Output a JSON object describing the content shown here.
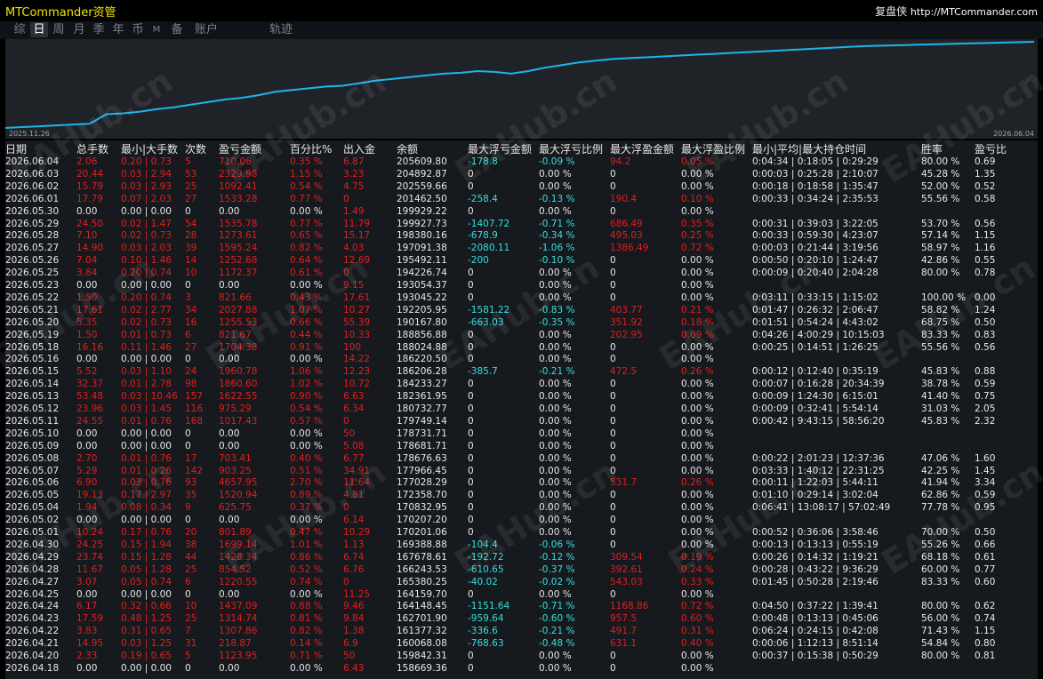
{
  "app": {
    "title": "MTCommander资管",
    "right_label": "复盘侠",
    "url": "http://MTCommander.com"
  },
  "tabs": [
    "综",
    "日",
    "周",
    "月",
    "季",
    "年",
    "币",
    "M",
    "备",
    "账户",
    "轨迹"
  ],
  "active_tab": "日",
  "chart": {
    "start_label": "2025.11.26",
    "end_label": "2026.06.04",
    "line_color": "#1eb4ea",
    "bg_color": "#1f2328"
  },
  "chart_data": {
    "type": "line",
    "x_start": "2025.11.26",
    "x_end": "2026.06.04",
    "series": [
      {
        "values": [
          0.0,
          0.01,
          0.02,
          0.03,
          0.04,
          0.05,
          0.16,
          0.17,
          0.19,
          0.22,
          0.24,
          0.27,
          0.3,
          0.33,
          0.35,
          0.38,
          0.42,
          0.44,
          0.46,
          0.48,
          0.49,
          0.52,
          0.55,
          0.57,
          0.59,
          0.61,
          0.63,
          0.64,
          0.66,
          0.65,
          0.63,
          0.66,
          0.7,
          0.73,
          0.76,
          0.78,
          0.8,
          0.81,
          0.82,
          0.83,
          0.84,
          0.85,
          0.86,
          0.87,
          0.88,
          0.89,
          0.9,
          0.91,
          0.92,
          0.93,
          0.94,
          0.95,
          0.955,
          0.96,
          0.965,
          0.97,
          0.975,
          0.98,
          0.985,
          0.99,
          0.995,
          1.0
        ]
      }
    ]
  },
  "columns": [
    "日期",
    "总手数",
    "最小|大手数",
    "次数",
    "盈亏金额",
    "百分比%",
    "出入金",
    "余额",
    "最大浮亏金额",
    "最大浮亏比例",
    "最大浮盈金额",
    "最大浮盈比例",
    "最小|平均|最大持仓时间",
    "胜率",
    "盈亏比"
  ],
  "rows": [
    [
      "2026.06.04",
      "2.06",
      "0.20 | 0.73",
      "5",
      "710.06",
      "0.35 %",
      "6.87",
      "205609.80",
      "-178.8",
      "-0.09 %",
      "94.2",
      "0.05 %",
      "0:04:34 | 0:18:05 | 0:29:29",
      "80.00 %",
      "0.69"
    ],
    [
      "2026.06.03",
      "20.44",
      "0.03 | 2.94",
      "53",
      "2329.98",
      "1.15 %",
      "3.23",
      "204892.87",
      "0",
      "0.00 %",
      "0",
      "0.00 %",
      "0:00:03 | 0:25:28 | 2:10:07",
      "45.28 %",
      "1.35"
    ],
    [
      "2026.06.02",
      "15.79",
      "0.03 | 2.93",
      "25",
      "1092.41",
      "0.54 %",
      "4.75",
      "202559.66",
      "0",
      "0.00 %",
      "0",
      "0.00 %",
      "0:00:18 | 0:18:58 | 1:35:47",
      "52.00 %",
      "0.52"
    ],
    [
      "2026.06.01",
      "17.79",
      "0.07 | 2.03",
      "27",
      "1533.28",
      "0.77 %",
      "0",
      "201462.50",
      "-258.4",
      "-0.13 %",
      "190.4",
      "0.10 %",
      "0:00:33 | 0:34:24 | 2:35:53",
      "55.56 %",
      "0.58"
    ],
    [
      "2026.05.30",
      "0.00",
      "0.00 | 0.00",
      "0",
      "0.00",
      "0.00 %",
      "1.49",
      "199929.22",
      "0",
      "0.00 %",
      "0",
      "0.00 %",
      "",
      "",
      ""
    ],
    [
      "2026.05.29",
      "24.50",
      "0.02 | 1.47",
      "54",
      "1535.78",
      "0.77 %",
      "11.79",
      "199927.73",
      "-1407.72",
      "-0.71 %",
      "686.49",
      "0.35 %",
      "0:00:31 | 0:39:03 | 3:22:05",
      "53.70 %",
      "0.56"
    ],
    [
      "2026.05.28",
      "7.10",
      "0.02 | 0.73",
      "28",
      "1273.61",
      "0.65 %",
      "15.17",
      "198380.16",
      "-678.9",
      "-0.34 %",
      "495.03",
      "0.25 %",
      "0:00:33 | 0:59:30 | 4:23:07",
      "57.14 %",
      "1.15"
    ],
    [
      "2026.05.27",
      "14.90",
      "0.03 | 2.03",
      "39",
      "1595.24",
      "0.82 %",
      "4.03",
      "197091.38",
      "-2080.11",
      "-1.06 %",
      "1386.49",
      "0.72 %",
      "0:00:03 | 0:21:44 | 3:19:56",
      "58.97 %",
      "1.16"
    ],
    [
      "2026.05.26",
      "7.04",
      "0.10 | 1.46",
      "14",
      "1252.68",
      "0.64 %",
      "12.69",
      "195492.11",
      "-200",
      "-0.10 %",
      "0",
      "0.00 %",
      "0:00:50 | 0:20:10 | 1:24:47",
      "42.86 %",
      "0.55"
    ],
    [
      "2026.05.25",
      "3.84",
      "0.20 | 0.74",
      "10",
      "1172.37",
      "0.61 %",
      "0",
      "194226.74",
      "0",
      "0.00 %",
      "0",
      "0.00 %",
      "0:00:09 | 0:20:40 | 2:04:28",
      "80.00 %",
      "0.78"
    ],
    [
      "2026.05.23",
      "0.00",
      "0.00 | 0.00",
      "0",
      "0.00",
      "0.00 %",
      "9.15",
      "193054.37",
      "0",
      "0.00 %",
      "0",
      "0.00 %",
      "",
      "",
      ""
    ],
    [
      "2026.05.22",
      "1.50",
      "0.20 | 0.74",
      "3",
      "821.66",
      "0.43 %",
      "17.61",
      "193045.22",
      "0",
      "0.00 %",
      "0",
      "0.00 %",
      "0:03:11 | 0:33:15 | 1:15:02",
      "100.00 %",
      "0.00"
    ],
    [
      "2026.05.21",
      "17.61",
      "0.02 | 2.77",
      "34",
      "2027.88",
      "1.07 %",
      "10.27",
      "192205.95",
      "-1581.22",
      "-0.83 %",
      "403.77",
      "0.21 %",
      "0:01:47 | 0:26:32 | 2:06:47",
      "58.82 %",
      "1.24"
    ],
    [
      "2026.05.20",
      "5.35",
      "0.02 | 0.73",
      "16",
      "1255.53",
      "0.66 %",
      "55.39",
      "190167.80",
      "-663.03",
      "-0.35 %",
      "351.92",
      "0.18 %",
      "0:01:51 | 0:54:24 | 4:43:02",
      "68.75 %",
      "0.50"
    ],
    [
      "2026.05.19",
      "1.50",
      "0.01 | 0.73",
      "6",
      "821.67",
      "0.44 %",
      "10.33",
      "188856.88",
      "0",
      "0.00 %",
      "202.95",
      "0.09 %",
      "0:04:26 | 4:00:29 | 10:15:03",
      "83.33 %",
      "0.83"
    ],
    [
      "2026.05.18",
      "16.16",
      "0.11 | 1.46",
      "27",
      "1704.38",
      "0.91 %",
      "100",
      "188024.88",
      "0",
      "0.00 %",
      "0",
      "0.00 %",
      "0:00:25 | 0:14:51 | 1:26:25",
      "55.56 %",
      "0.56"
    ],
    [
      "2026.05.16",
      "0.00",
      "0.00 | 0.00",
      "0",
      "0.00",
      "0.00 %",
      "14.22",
      "186220.50",
      "0",
      "0.00 %",
      "0",
      "0.00 %",
      "",
      "",
      ""
    ],
    [
      "2026.05.15",
      "5.52",
      "0.03 | 1.10",
      "24",
      "1960.78",
      "1.06 %",
      "12.23",
      "186206.28",
      "-385.7",
      "-0.21 %",
      "472.5",
      "0.26 %",
      "0:00:12 | 0:12:40 | 0:35:19",
      "45.83 %",
      "0.88"
    ],
    [
      "2026.05.14",
      "32.37",
      "0.01 | 2.78",
      "98",
      "1860.60",
      "1.02 %",
      "10.72",
      "184233.27",
      "0",
      "0.00 %",
      "0",
      "0.00 %",
      "0:00:07 | 0:16:28 | 20:34:39",
      "38.78 %",
      "0.59"
    ],
    [
      "2026.05.13",
      "53.48",
      "0.03 | 10.46",
      "157",
      "1622.55",
      "0.90 %",
      "6.63",
      "182361.95",
      "0",
      "0.00 %",
      "0",
      "0.00 %",
      "0:00:09 | 1:24:30 | 6:15:01",
      "41.40 %",
      "0.75"
    ],
    [
      "2026.05.12",
      "23.96",
      "0.03 | 1.45",
      "116",
      "975.29",
      "0.54 %",
      "6.34",
      "180732.77",
      "0",
      "0.00 %",
      "0",
      "0.00 %",
      "0:00:09 | 0:32:41 | 5:54:14",
      "31.03 %",
      "2.05"
    ],
    [
      "2026.05.11",
      "24.55",
      "0.01 | 0.76",
      "168",
      "1017.43",
      "0.57 %",
      "0",
      "179749.14",
      "0",
      "0.00 %",
      "0",
      "0.00 %",
      "0:00:42 | 9:43:15 | 58:56:20",
      "45.83 %",
      "2.32"
    ],
    [
      "2026.05.10",
      "0.00",
      "0.00 | 0.00",
      "0",
      "0.00",
      "0.00 %",
      "50",
      "178731.71",
      "0",
      "0.00 %",
      "0",
      "0.00 %",
      "",
      "",
      ""
    ],
    [
      "2026.05.09",
      "0.00",
      "0.00 | 0.00",
      "0",
      "0.00",
      "0.00 %",
      "5.08",
      "178681.71",
      "0",
      "0.00 %",
      "0",
      "0.00 %",
      "",
      "",
      ""
    ],
    [
      "2026.05.08",
      "2.70",
      "0.01 | 0.76",
      "17",
      "703.41",
      "0.40 %",
      "6.77",
      "178676.63",
      "0",
      "0.00 %",
      "0",
      "0.00 %",
      "0:00:22 | 2:01:23 | 12:37:36",
      "47.06 %",
      "1.60"
    ],
    [
      "2026.05.07",
      "5.29",
      "0.01 | 0.26",
      "142",
      "903.25",
      "0.51 %",
      "34.91",
      "177966.45",
      "0",
      "0.00 %",
      "0",
      "0.00 %",
      "0:03:33 | 1:40:12 | 22:31:25",
      "42.25 %",
      "1.45"
    ],
    [
      "2026.05.06",
      "6.90",
      "0.03 | 0.76",
      "93",
      "4657.95",
      "2.70 %",
      "11.64",
      "177028.29",
      "0",
      "0.00 %",
      "531.7",
      "0.26 %",
      "0:00:11 | 1:22:03 | 5:44:11",
      "41.94 %",
      "3.34"
    ],
    [
      "2026.05.05",
      "19.13",
      "0.17 | 2.97",
      "35",
      "1520.94",
      "0.89 %",
      "4.81",
      "172358.70",
      "0",
      "0.00 %",
      "0",
      "0.00 %",
      "0:01:10 | 0:29:14 | 3:02:04",
      "62.86 %",
      "0.59"
    ],
    [
      "2026.05.04",
      "1.94",
      "0.08 | 0.34",
      "9",
      "625.75",
      "0.37 %",
      "0",
      "170832.95",
      "0",
      "0.00 %",
      "0",
      "0.00 %",
      "0:06:41 | 13:08:17 | 57:02:49",
      "77.78 %",
      "0.95"
    ],
    [
      "2026.05.02",
      "0.00",
      "0.00 | 0.00",
      "0",
      "0.00",
      "0.00 %",
      "6.14",
      "170207.20",
      "0",
      "0.00 %",
      "0",
      "0.00 %",
      "",
      "",
      ""
    ],
    [
      "2026.05.01",
      "10.24",
      "0.17 | 0.76",
      "20",
      "801.89",
      "0.47 %",
      "10.29",
      "170201.06",
      "0",
      "0.00 %",
      "0",
      "0.00 %",
      "0:00:52 | 0:36:06 | 3:58:46",
      "70.00 %",
      "0.50"
    ],
    [
      "2026.04.30",
      "24.25",
      "0.15 | 1.94",
      "38",
      "1699.14",
      "1.01 %",
      "1.13",
      "169388.88",
      "-104.4",
      "-0.06 %",
      "0",
      "0.00 %",
      "0:00:13 | 0:13:13 | 0:55:19",
      "55.26 %",
      "0.66"
    ],
    [
      "2026.04.29",
      "23.74",
      "0.15 | 1.28",
      "44",
      "1428.34",
      "0.86 %",
      "6.74",
      "167678.61",
      "-192.72",
      "-0.12 %",
      "309.54",
      "0.19 %",
      "0:00:26 | 0:14:32 | 1:19:21",
      "68.18 %",
      "0.61"
    ],
    [
      "2026.04.28",
      "11.67",
      "0.05 | 1.28",
      "25",
      "854.52",
      "0.52 %",
      "6.76",
      "166243.53",
      "-610.65",
      "-0.37 %",
      "392.61",
      "0.24 %",
      "0:00:28 | 0:43:22 | 9:36:29",
      "60.00 %",
      "0.77"
    ],
    [
      "2026.04.27",
      "3.07",
      "0.05 | 0.74",
      "6",
      "1220.55",
      "0.74 %",
      "0",
      "165380.25",
      "-40.02",
      "-0.02 %",
      "543.03",
      "0.33 %",
      "0:01:45 | 0:50:28 | 2:19:46",
      "83.33 %",
      "0.60"
    ],
    [
      "2026.04.25",
      "0.00",
      "0.00 | 0.00",
      "0",
      "0.00",
      "0.00 %",
      "11.25",
      "164159.70",
      "0",
      "0.00 %",
      "0",
      "0.00 %",
      "",
      "",
      ""
    ],
    [
      "2026.04.24",
      "6.17",
      "0.32 | 0.66",
      "10",
      "1437.09",
      "0.88 %",
      "9.46",
      "164148.45",
      "-1151.64",
      "-0.71 %",
      "1168.86",
      "0.72 %",
      "0:04:50 | 0:37:22 | 1:39:41",
      "80.00 %",
      "0.62"
    ],
    [
      "2026.04.23",
      "17.59",
      "0.48 | 1.25",
      "25",
      "1314.74",
      "0.81 %",
      "9.84",
      "162701.90",
      "-959.64",
      "-0.60 %",
      "957.5",
      "0.60 %",
      "0:00:48 | 0:13:13 | 0:45:06",
      "56.00 %",
      "0.74"
    ],
    [
      "2026.04.22",
      "3.83",
      "0.31 | 0.65",
      "7",
      "1307.86",
      "0.82 %",
      "1.38",
      "161377.32",
      "-336.6",
      "-0.21 %",
      "491.7",
      "0.31 %",
      "0:06:24 | 0:24:15 | 0:42:08",
      "71.43 %",
      "1.15"
    ],
    [
      "2026.04.21",
      "14.95",
      "0.03 | 1.25",
      "31",
      "218.87",
      "0.14 %",
      "6.9",
      "160068.08",
      "-768.63",
      "-0.48 %",
      "631.1",
      "0.40 %",
      "0:00:06 | 1:12:13 | 8:51:14",
      "54.84 %",
      "0.80"
    ],
    [
      "2026.04.20",
      "2.33",
      "0.19 | 0.65",
      "5",
      "1123.95",
      "0.71 %",
      "50",
      "159842.31",
      "0",
      "0.00 %",
      "0",
      "0.00 %",
      "0:00:37 | 0:15:38 | 0:50:29",
      "80.00 %",
      "0.81"
    ],
    [
      "2026.04.18",
      "0.00",
      "0.00 | 0.00",
      "0",
      "0.00",
      "0.00 %",
      "6.43",
      "158669.36",
      "0",
      "0.00 %",
      "0",
      "0.00 %",
      "",
      "",
      ""
    ]
  ],
  "watermark": "EAHub.cn"
}
